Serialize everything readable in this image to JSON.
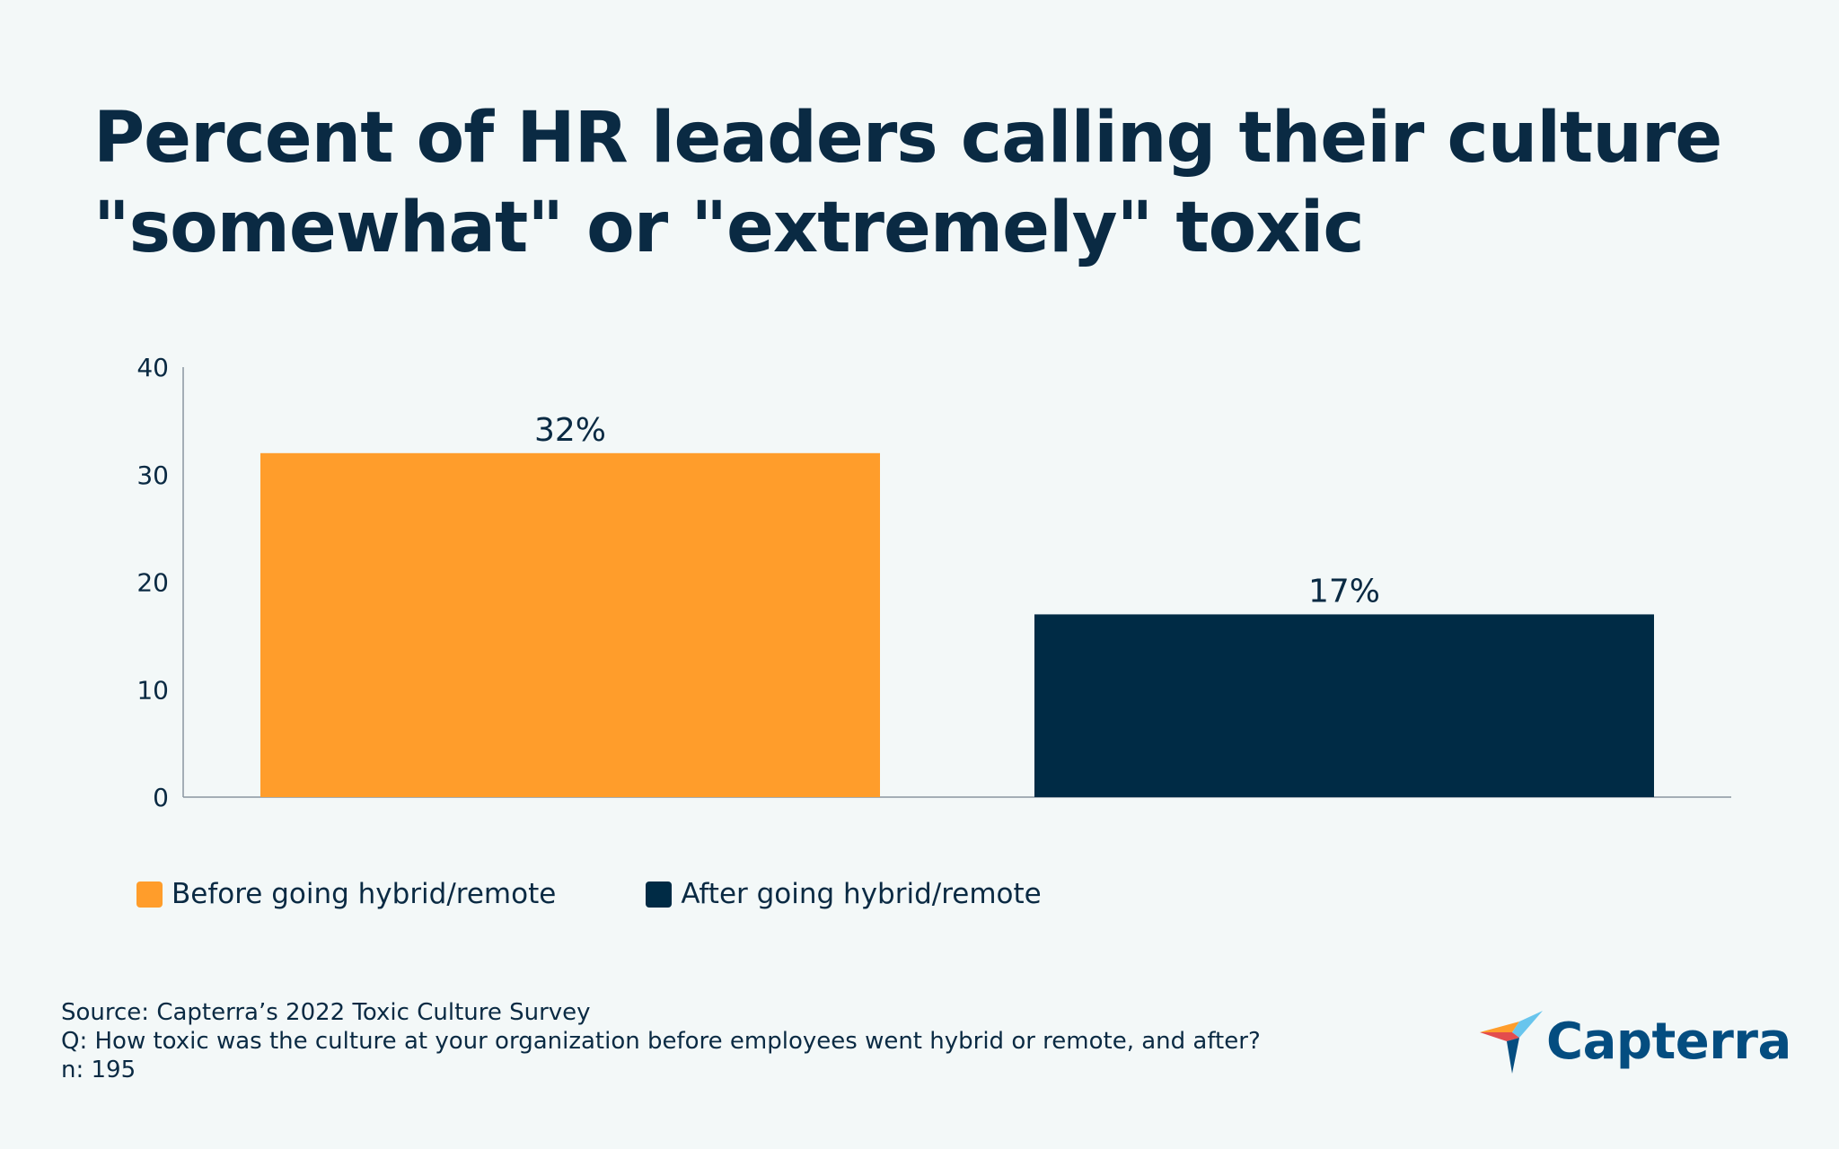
{
  "chart_data": {
    "type": "bar",
    "title": "Percent of HR leaders calling their culture \"somewhat\" or \"extremely\" toxic",
    "categories": [
      "Before going hybrid/remote",
      "After going hybrid/remote"
    ],
    "values": [
      32,
      17
    ],
    "data_labels": [
      "32%",
      "17%"
    ],
    "colors": [
      "#ff9d2b",
      "#002b45"
    ],
    "ylim": [
      0,
      40
    ],
    "yticks": [
      0,
      10,
      20,
      30,
      40
    ],
    "ytick_labels": [
      "0",
      "10",
      "20",
      "30",
      "40"
    ],
    "xlabel": "",
    "ylabel": "",
    "grid": false,
    "legend_position": "bottom-left"
  },
  "legend": {
    "items": [
      {
        "label": "Before going hybrid/remote",
        "color": "#ff9d2b"
      },
      {
        "label": "After going hybrid/remote",
        "color": "#002b45"
      }
    ]
  },
  "source": {
    "line1": "Source: Capterra’s 2022 Toxic Culture Survey",
    "line2": "Q: How toxic was the culture at your organization before employees went hybrid or remote, and after?",
    "line3": "n: 195"
  },
  "logo": {
    "text": "Capterra",
    "icon": "capterra-arrow-icon"
  }
}
